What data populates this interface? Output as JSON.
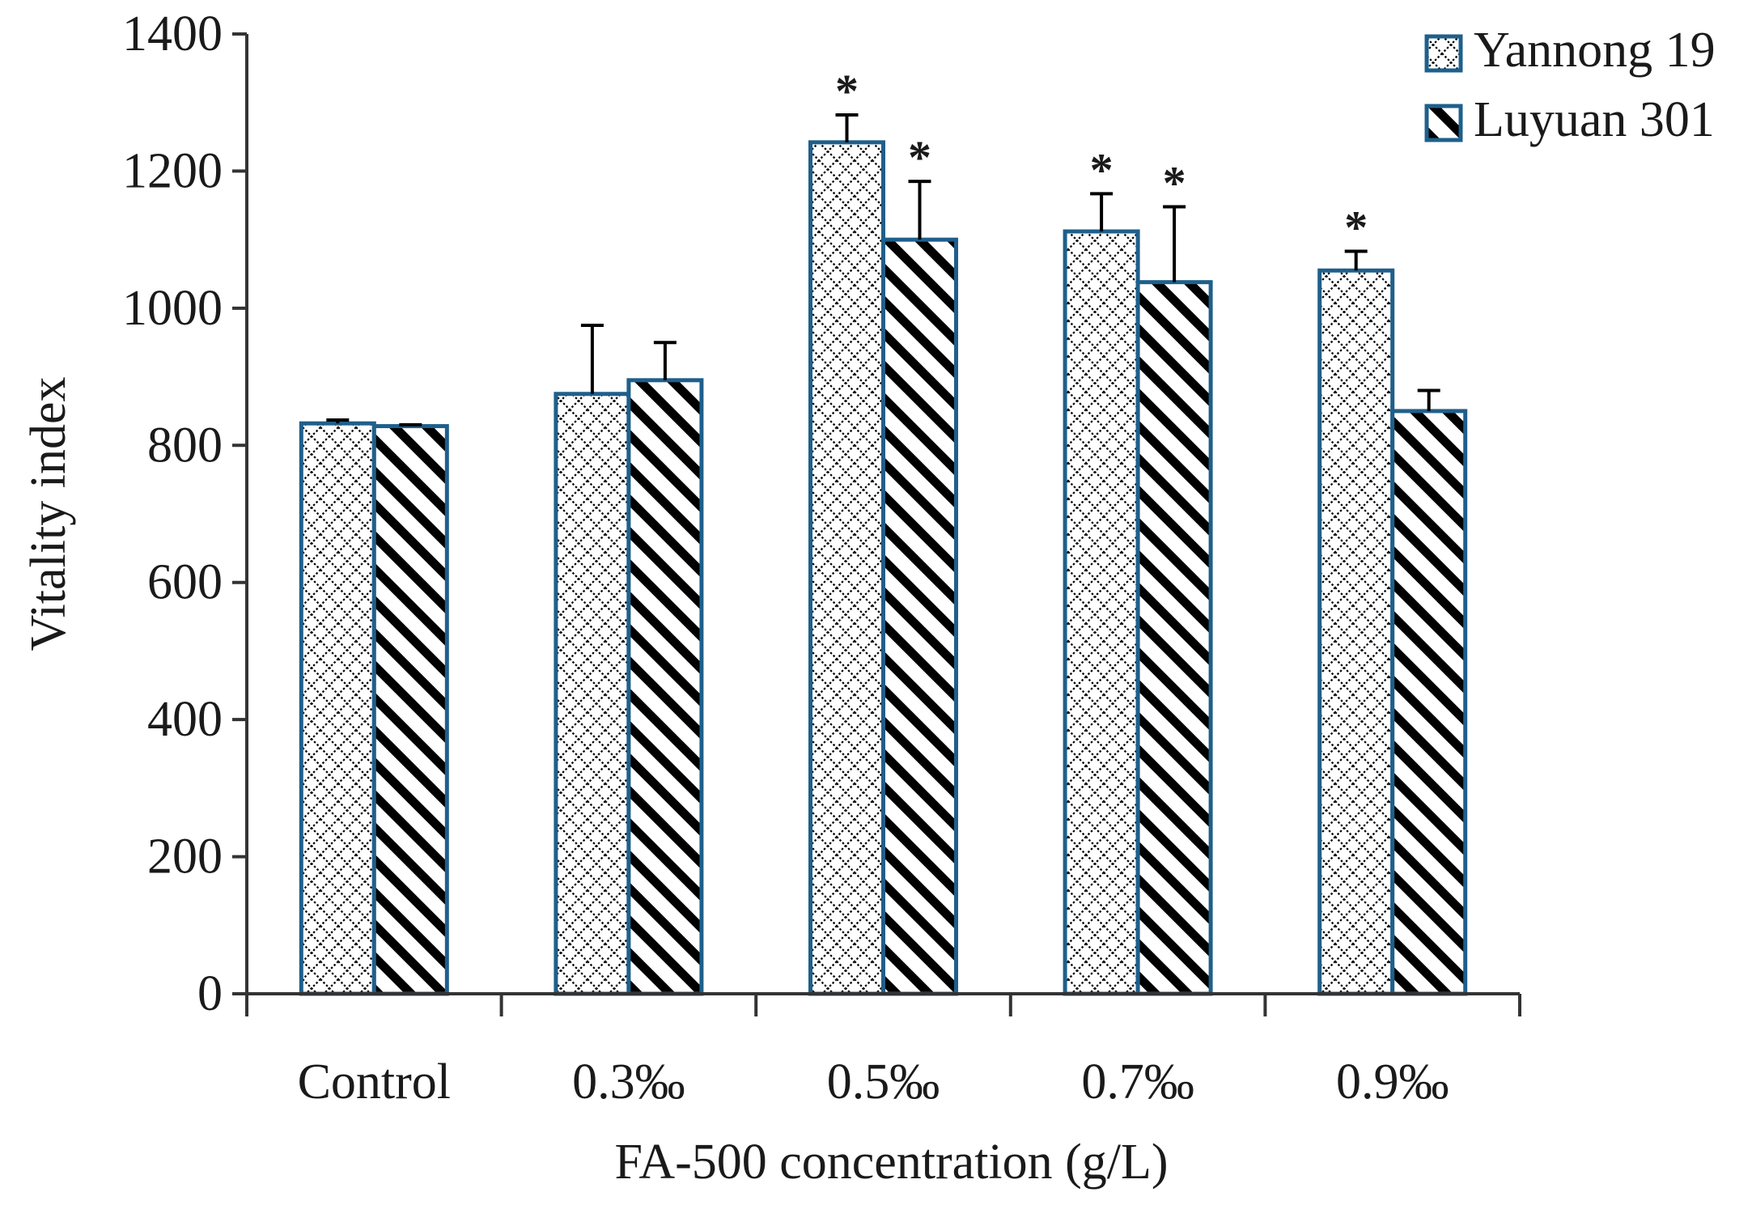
{
  "chart_data": {
    "type": "bar",
    "xlabel": "FA-500 concentration (g/L)",
    "ylabel": "Vitality index",
    "ylim": [
      0,
      1400
    ],
    "ytick_step": 200,
    "yticks": [
      "0",
      "200",
      "400",
      "600",
      "800",
      "1000",
      "1200",
      "1400"
    ],
    "categories": [
      "Control",
      "0.3‰",
      "0.5‰",
      "0.7‰",
      "0.9‰"
    ],
    "series": [
      {
        "name": "Yannong 19",
        "pattern": "crosshatch",
        "values": [
          832,
          875,
          1242,
          1112,
          1055
        ],
        "errors": [
          5,
          100,
          40,
          55,
          28
        ],
        "significance": [
          "",
          "",
          "*",
          "*",
          "*"
        ]
      },
      {
        "name": "Luyuan 301",
        "pattern": "diagonal",
        "values": [
          828,
          895,
          1100,
          1038,
          850
        ],
        "errors": [
          2,
          55,
          85,
          110,
          30
        ],
        "significance": [
          "",
          "",
          "*",
          "*",
          ""
        ]
      }
    ],
    "legend_position": "top-right",
    "grid": false,
    "colors": {
      "bar_border": "#1f5f8b",
      "axis": "#333333",
      "hatch": "#000000",
      "error_bar": "#000000"
    }
  }
}
